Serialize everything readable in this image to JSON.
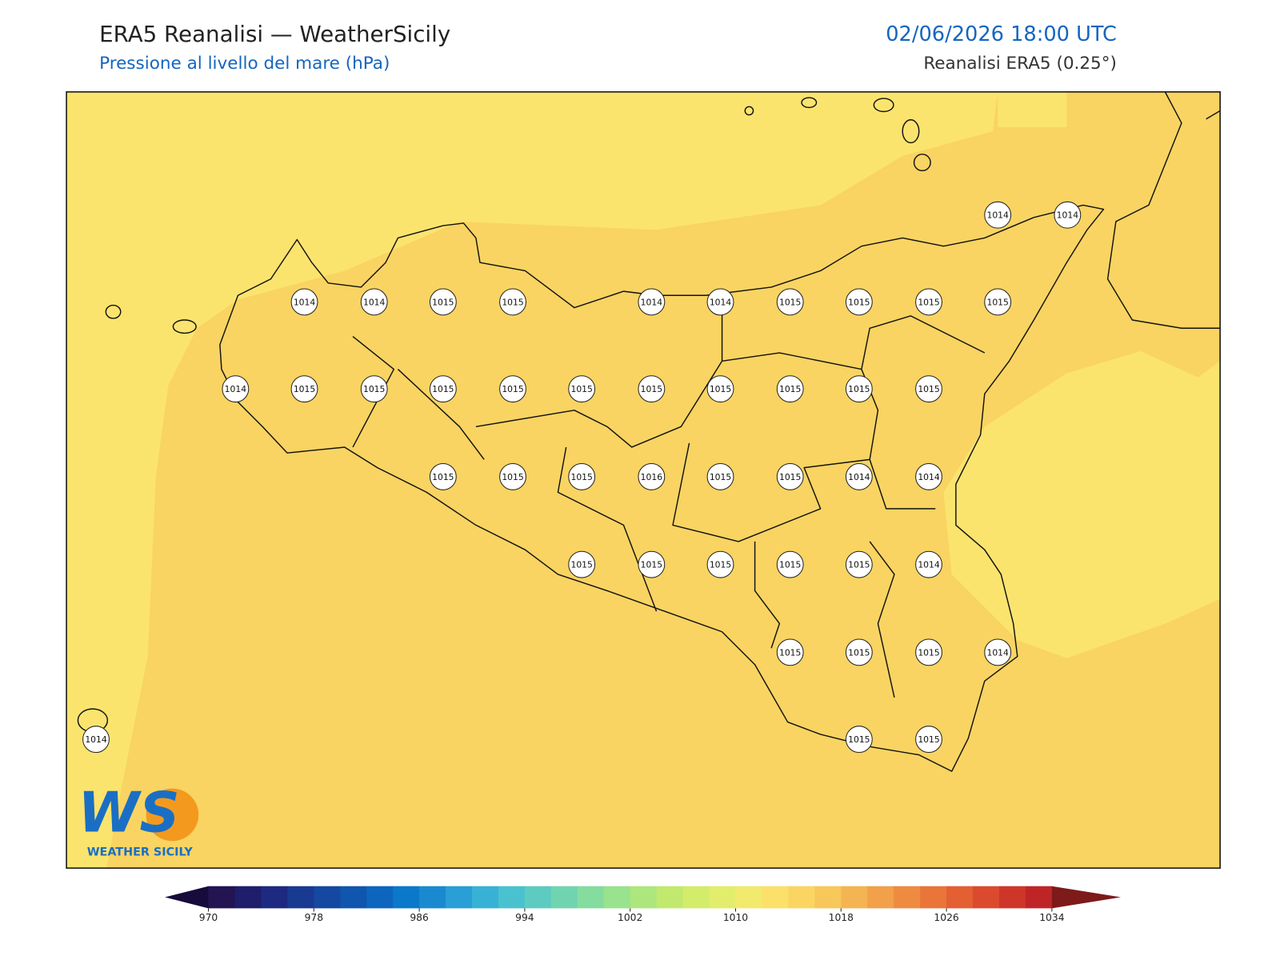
{
  "header": {
    "title": "ERA5 Reanalisi — WeatherSicily",
    "subtitle": "Pressione al livello del mare (hPa)",
    "datetime": "02/06/2026 18:00 UTC",
    "source": "Reanalisi ERA5 (0.25°)"
  },
  "stations": [
    1014,
    1014,
    1014,
    1014,
    1015,
    1015,
    1014,
    1014,
    1015,
    1015,
    1015,
    1015,
    1014,
    1015,
    1015,
    1015,
    1015,
    1015,
    1015,
    1015,
    1015,
    1015,
    1015,
    1015,
    1015,
    1015,
    1016,
    1015,
    1015,
    1014,
    1014,
    1015,
    1015,
    1015,
    1015,
    1015,
    1014,
    1015,
    1015,
    1015,
    1014,
    1014,
    1015,
    1015
  ],
  "colorbar": {
    "range": [
      970,
      1034
    ],
    "ticks": [
      970,
      978,
      986,
      994,
      1002,
      1010,
      1018,
      1026,
      1034
    ],
    "under_color": "#160b3a",
    "over_color": "#7d1a1a",
    "colors": [
      "#231452",
      "#1f1e6b",
      "#1d2a80",
      "#193a91",
      "#1548a0",
      "#1056ae",
      "#0c66bd",
      "#0b78c9",
      "#1a8ad0",
      "#2a9ed6",
      "#37b2d6",
      "#4ac1ce",
      "#5dcbc0",
      "#71d4b0",
      "#85dc9f",
      "#99e28e",
      "#ade67d",
      "#c1e96e",
      "#d3ec6a",
      "#e3ed6c",
      "#f1ea6c",
      "#fbe06a",
      "#fad562",
      "#f8c75a",
      "#f5b452",
      "#f2a04a",
      "#ee8b41",
      "#e97539",
      "#e45f32",
      "#dc4a2d",
      "#cf362a",
      "#bf2527"
    ]
  },
  "logo": {
    "text": "WS",
    "caption": "WEATHER SICILY"
  }
}
